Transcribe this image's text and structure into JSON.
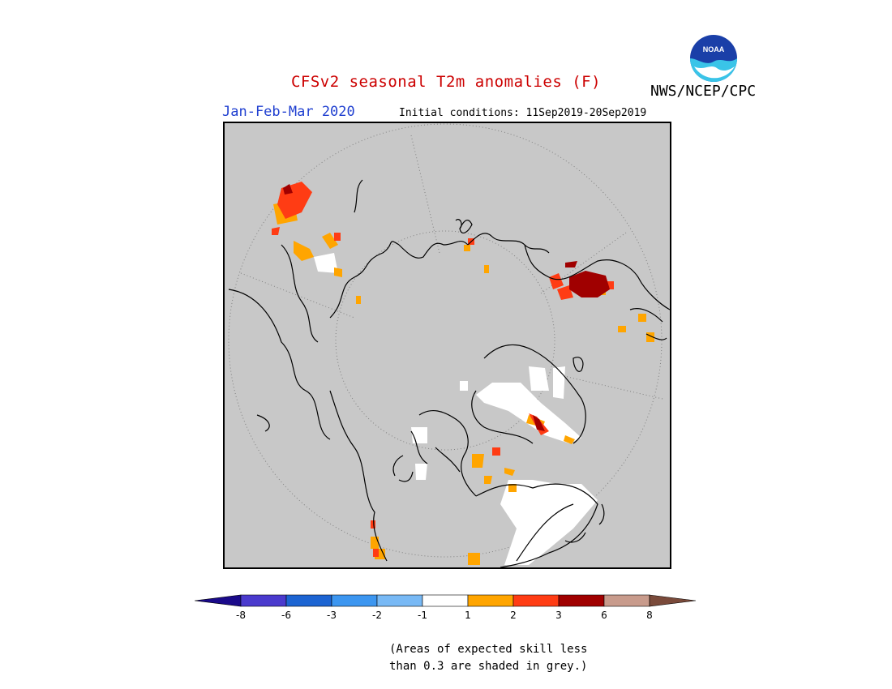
{
  "header": {
    "title": "CFSv2 seasonal T2m anomalies (F)",
    "agency": "NWS/NCEP/CPC",
    "logo_text": "NOAA",
    "period": "Jan-Feb-Mar 2020",
    "initial_conditions": "Initial conditions: 11Sep2019-20Sep2019"
  },
  "colors": {
    "title": "#cc0000",
    "period": "#1f3fd0",
    "map_background": "#c8c8c8",
    "coastline": "#000000"
  },
  "legend": {
    "bins": [
      {
        "lower": null,
        "upper": -8,
        "color": "#1a0a8a"
      },
      {
        "lower": -8,
        "upper": -6,
        "color": "#4a3acd"
      },
      {
        "lower": -6,
        "upper": -3,
        "color": "#1c64d2"
      },
      {
        "lower": -3,
        "upper": -2,
        "color": "#3c96f0"
      },
      {
        "lower": -2,
        "upper": -1,
        "color": "#78b9f5"
      },
      {
        "lower": -1,
        "upper": 1,
        "color": "#ffffff"
      },
      {
        "lower": 1,
        "upper": 2,
        "color": "#ffa500"
      },
      {
        "lower": 2,
        "upper": 3,
        "color": "#ff3c14"
      },
      {
        "lower": 3,
        "upper": 6,
        "color": "#a00000"
      },
      {
        "lower": 6,
        "upper": 8,
        "color": "#c89b8c"
      },
      {
        "lower": 8,
        "upper": null,
        "color": "#7a4a3a"
      }
    ],
    "tick_labels": [
      "-8",
      "-6",
      "-3",
      "-2",
      "-1",
      "1",
      "2",
      "3",
      "6",
      "8"
    ]
  },
  "note": {
    "line1": "(Areas of expected skill less",
    "line2": "than 0.3 are shaded in grey.)"
  }
}
